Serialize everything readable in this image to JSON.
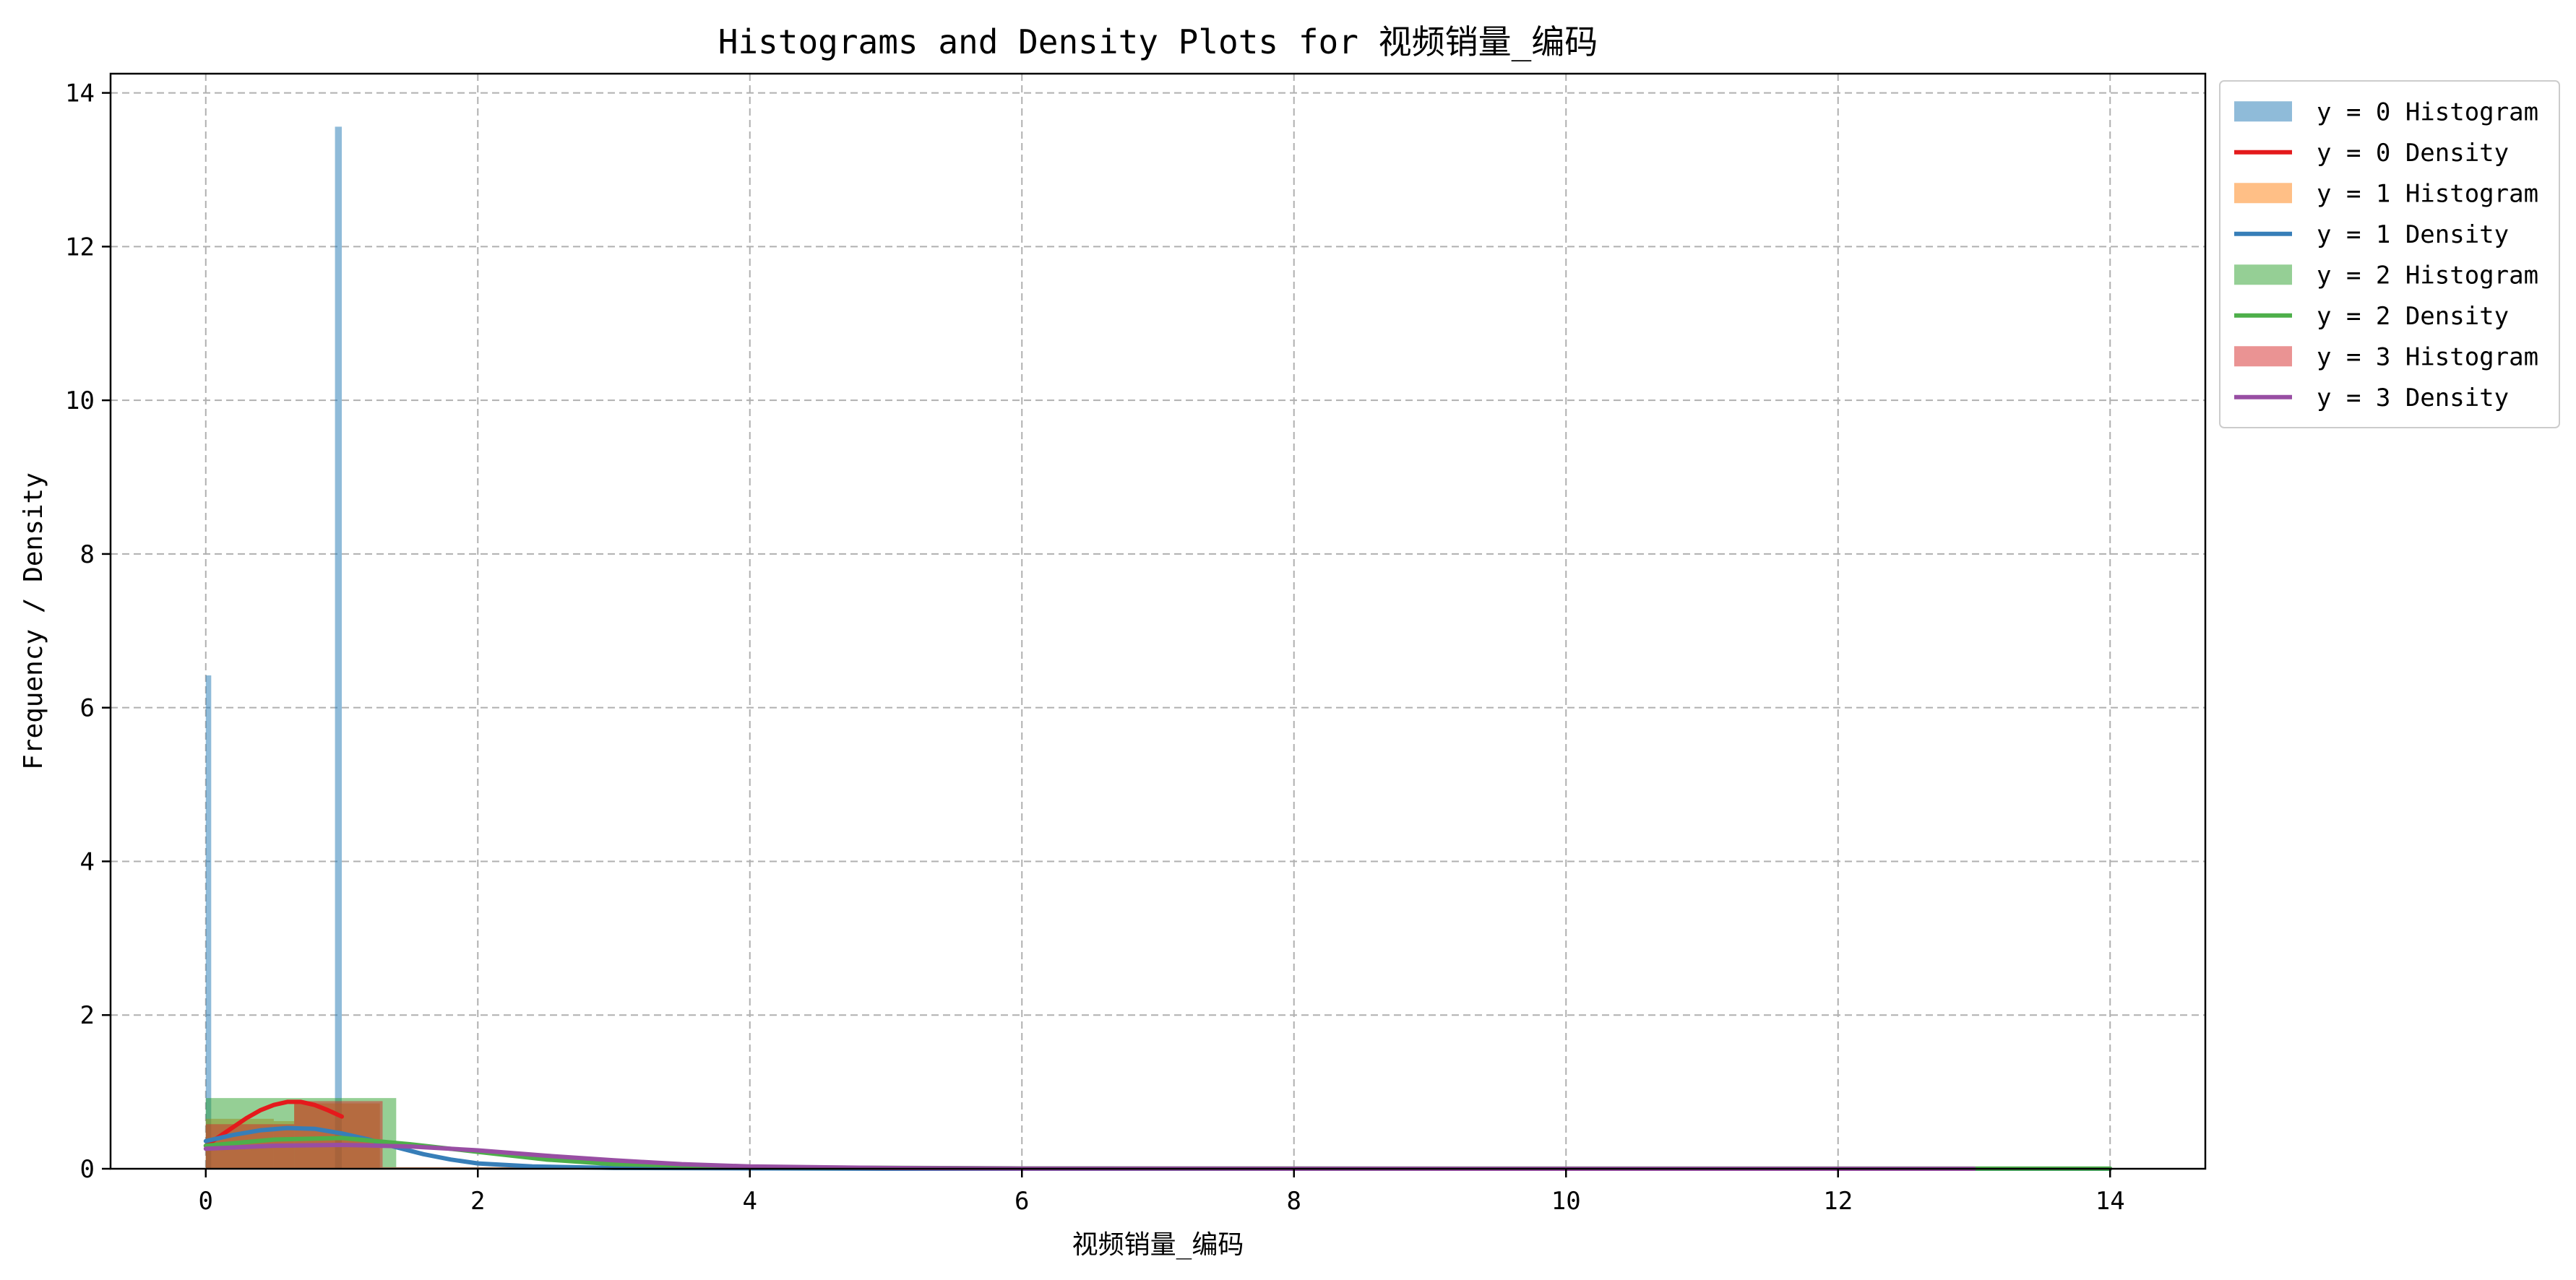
{
  "chart_data": {
    "type": "histogram",
    "title": "Histograms and Density Plots for 视频销量_编码",
    "xlabel": "视频销量_编码",
    "ylabel": "Frequency / Density",
    "xlim": [
      -0.7,
      14.7
    ],
    "ylim": [
      0,
      14.25
    ],
    "xticks": [
      0,
      2,
      4,
      6,
      8,
      10,
      12,
      14
    ],
    "yticks": [
      0,
      2,
      4,
      6,
      8,
      10,
      12,
      14
    ],
    "grid": true,
    "legend_position": "outside-top-right",
    "histograms": [
      {
        "name": "y = 0 Histogram",
        "color": "#1f77b4",
        "opacity": 0.5,
        "bins": [
          [
            0,
            0.04,
            6.42
          ],
          [
            0.95,
            1.0,
            13.56
          ]
        ]
      },
      {
        "name": "y = 1 Histogram",
        "color": "#ff7f0e",
        "opacity": 0.5,
        "bins": [
          [
            0,
            0.5,
            0.65
          ],
          [
            0.5,
            0.65,
            0.62
          ],
          [
            0.65,
            1.28,
            0.85
          ]
        ]
      },
      {
        "name": "y = 2 Histogram",
        "color": "#2ca02c",
        "opacity": 0.5,
        "bins": [
          [
            0,
            1.4,
            0.92
          ],
          [
            1.4,
            14,
            0.02
          ]
        ]
      },
      {
        "name": "y = 3 Histogram",
        "color": "#d62728",
        "opacity": 0.5,
        "bins": [
          [
            0,
            0.65,
            0.58
          ],
          [
            0.65,
            1.3,
            0.88
          ],
          [
            1.3,
            13,
            0.02
          ]
        ]
      }
    ],
    "densities": [
      {
        "name": "y = 0 Density",
        "color": "#e41a1c",
        "points": [
          [
            0,
            0.3
          ],
          [
            0.1,
            0.42
          ],
          [
            0.2,
            0.54
          ],
          [
            0.3,
            0.66
          ],
          [
            0.4,
            0.76
          ],
          [
            0.5,
            0.83
          ],
          [
            0.6,
            0.87
          ],
          [
            0.7,
            0.87
          ],
          [
            0.8,
            0.83
          ],
          [
            0.9,
            0.76
          ],
          [
            1.0,
            0.68
          ]
        ]
      },
      {
        "name": "y = 1 Density",
        "color": "#377eb8",
        "points": [
          [
            0,
            0.36
          ],
          [
            0.2,
            0.44
          ],
          [
            0.4,
            0.5
          ],
          [
            0.6,
            0.53
          ],
          [
            0.8,
            0.52
          ],
          [
            1.0,
            0.46
          ],
          [
            1.2,
            0.38
          ],
          [
            1.4,
            0.28
          ],
          [
            1.6,
            0.19
          ],
          [
            1.8,
            0.12
          ],
          [
            2.0,
            0.07
          ],
          [
            2.4,
            0.03
          ],
          [
            3,
            0.01
          ],
          [
            5,
            0.0
          ],
          [
            14,
            0.0
          ]
        ]
      },
      {
        "name": "y = 2 Density",
        "color": "#4daf4a",
        "points": [
          [
            0,
            0.3
          ],
          [
            0.5,
            0.38
          ],
          [
            1.0,
            0.4
          ],
          [
            1.5,
            0.32
          ],
          [
            2.0,
            0.22
          ],
          [
            2.5,
            0.12
          ],
          [
            3.0,
            0.06
          ],
          [
            4.0,
            0.02
          ],
          [
            6,
            0.005
          ],
          [
            10,
            0.002
          ],
          [
            14,
            0.002
          ]
        ]
      },
      {
        "name": "y = 3 Density",
        "color": "#984ea3",
        "points": [
          [
            0,
            0.26
          ],
          [
            0.5,
            0.3
          ],
          [
            1.0,
            0.31
          ],
          [
            1.5,
            0.29
          ],
          [
            2.0,
            0.24
          ],
          [
            2.5,
            0.17
          ],
          [
            3.0,
            0.11
          ],
          [
            3.5,
            0.06
          ],
          [
            4.0,
            0.03
          ],
          [
            5.0,
            0.01
          ],
          [
            6.0,
            0.003
          ],
          [
            10,
            0.0
          ],
          [
            13,
            0.0
          ]
        ]
      }
    ],
    "legend": [
      {
        "label": "y = 0 Histogram",
        "kind": "patch",
        "color": "#1f77b4",
        "opacity": 0.5
      },
      {
        "label": "y = 0 Density",
        "kind": "line",
        "color": "#e41a1c"
      },
      {
        "label": "y = 1 Histogram",
        "kind": "patch",
        "color": "#ff7f0e",
        "opacity": 0.5
      },
      {
        "label": "y = 1 Density",
        "kind": "line",
        "color": "#377eb8"
      },
      {
        "label": "y = 2 Histogram",
        "kind": "patch",
        "color": "#2ca02c",
        "opacity": 0.5
      },
      {
        "label": "y = 2 Density",
        "kind": "line",
        "color": "#4daf4a"
      },
      {
        "label": "y = 3 Histogram",
        "kind": "patch",
        "color": "#d62728",
        "opacity": 0.5
      },
      {
        "label": "y = 3 Density",
        "kind": "line",
        "color": "#984ea3"
      }
    ]
  }
}
